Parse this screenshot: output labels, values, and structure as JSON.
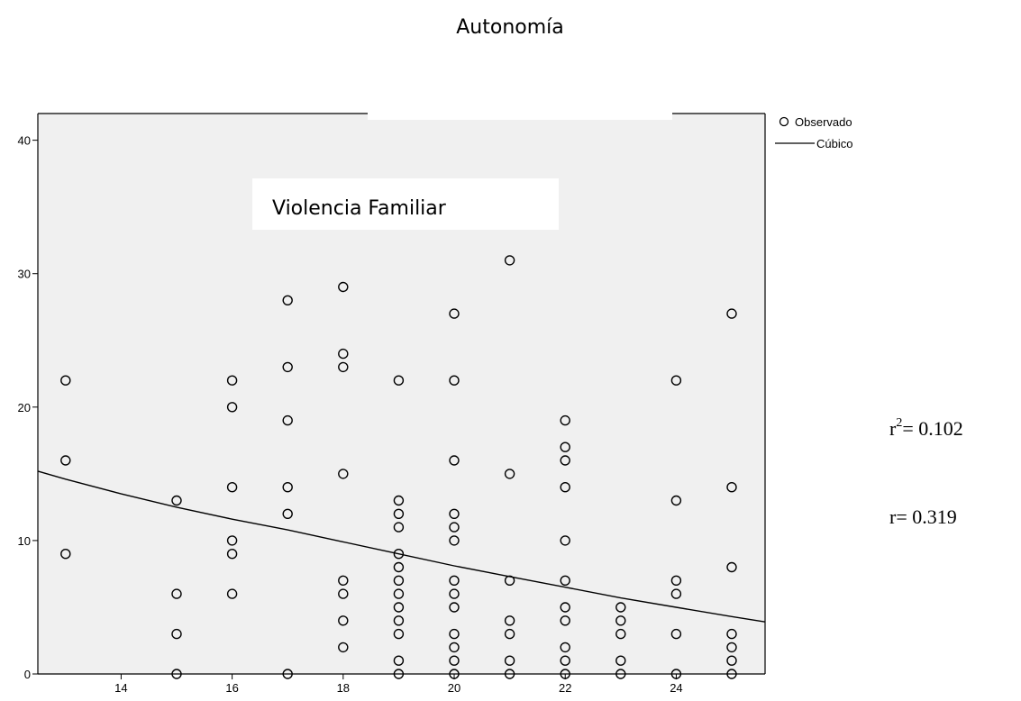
{
  "title": "Autonomía",
  "inset_label": "Violencia Familiar",
  "legend": {
    "observed": "Observado",
    "fit": "Cúbico"
  },
  "stats": {
    "r2_base": "r",
    "r2_exp": "2",
    "r2_value": "= 0.102",
    "r_text": "r= 0.319"
  },
  "colors": {
    "plot_background": "#f0f0f0",
    "marker": "#000000",
    "line": "#000000"
  },
  "chart_data": {
    "type": "scatter",
    "title": "Autonomía",
    "xlabel": "Violencia Familiar",
    "ylabel": "",
    "xlim": [
      12.5,
      25.6
    ],
    "ylim": [
      0,
      42
    ],
    "x_ticks": [
      14,
      16,
      18,
      20,
      22,
      24
    ],
    "y_ticks": [
      0,
      10,
      20,
      30,
      40
    ],
    "grid": false,
    "legend_position": "top-right",
    "series": [
      {
        "name": "Observado",
        "kind": "points",
        "points": [
          [
            13,
            22
          ],
          [
            13,
            16
          ],
          [
            13,
            9
          ],
          [
            15,
            13
          ],
          [
            15,
            6
          ],
          [
            15,
            3
          ],
          [
            15,
            0
          ],
          [
            16,
            22
          ],
          [
            16,
            20
          ],
          [
            16,
            14
          ],
          [
            16,
            10
          ],
          [
            16,
            9
          ],
          [
            16,
            6
          ],
          [
            17,
            28
          ],
          [
            17,
            23
          ],
          [
            17,
            19
          ],
          [
            17,
            14
          ],
          [
            17,
            12
          ],
          [
            17,
            0
          ],
          [
            18,
            29
          ],
          [
            18,
            24
          ],
          [
            18,
            23
          ],
          [
            18,
            15
          ],
          [
            18,
            7
          ],
          [
            18,
            6
          ],
          [
            18,
            4
          ],
          [
            18,
            2
          ],
          [
            19,
            22
          ],
          [
            19,
            13
          ],
          [
            19,
            12
          ],
          [
            19,
            11
          ],
          [
            19,
            9
          ],
          [
            19,
            8
          ],
          [
            19,
            7
          ],
          [
            19,
            6
          ],
          [
            19,
            5
          ],
          [
            19,
            4
          ],
          [
            19,
            3
          ],
          [
            19,
            1
          ],
          [
            19,
            0
          ],
          [
            20,
            27
          ],
          [
            20,
            22
          ],
          [
            20,
            16
          ],
          [
            20,
            12
          ],
          [
            20,
            11
          ],
          [
            20,
            10
          ],
          [
            20,
            7
          ],
          [
            20,
            6
          ],
          [
            20,
            5
          ],
          [
            20,
            3
          ],
          [
            20,
            2
          ],
          [
            20,
            1
          ],
          [
            20,
            0
          ],
          [
            21,
            31
          ],
          [
            21,
            15
          ],
          [
            21,
            7
          ],
          [
            21,
            4
          ],
          [
            21,
            3
          ],
          [
            21,
            1
          ],
          [
            21,
            0
          ],
          [
            22,
            19
          ],
          [
            22,
            17
          ],
          [
            22,
            16
          ],
          [
            22,
            14
          ],
          [
            22,
            10
          ],
          [
            22,
            7
          ],
          [
            22,
            5
          ],
          [
            22,
            4
          ],
          [
            22,
            2
          ],
          [
            22,
            1
          ],
          [
            22,
            0
          ],
          [
            23,
            5
          ],
          [
            23,
            4
          ],
          [
            23,
            3
          ],
          [
            23,
            1
          ],
          [
            23,
            0
          ],
          [
            24,
            22
          ],
          [
            24,
            13
          ],
          [
            24,
            7
          ],
          [
            24,
            6
          ],
          [
            24,
            3
          ],
          [
            24,
            0
          ],
          [
            25,
            27
          ],
          [
            25,
            14
          ],
          [
            25,
            8
          ],
          [
            25,
            3
          ],
          [
            25,
            2
          ],
          [
            25,
            1
          ],
          [
            25,
            0
          ]
        ]
      },
      {
        "name": "Cúbico",
        "kind": "line",
        "points": [
          [
            12.5,
            15.2
          ],
          [
            13,
            14.6
          ],
          [
            14,
            13.5
          ],
          [
            15,
            12.5
          ],
          [
            16,
            11.6
          ],
          [
            17,
            10.8
          ],
          [
            18,
            9.9
          ],
          [
            19,
            9.0
          ],
          [
            20,
            8.1
          ],
          [
            21,
            7.3
          ],
          [
            22,
            6.5
          ],
          [
            23,
            5.7
          ],
          [
            24,
            5.0
          ],
          [
            25,
            4.3
          ],
          [
            25.6,
            3.9
          ]
        ]
      }
    ]
  }
}
